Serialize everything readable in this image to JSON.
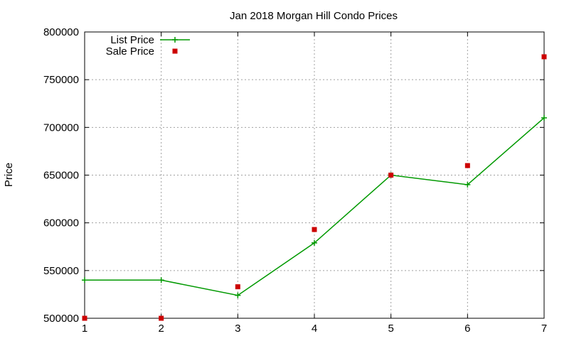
{
  "chart_data": {
    "type": "line",
    "title": "Jan 2018 Morgan Hill Condo Prices",
    "xlabel": "",
    "ylabel": "Price",
    "x": [
      1,
      2,
      3,
      4,
      5,
      6,
      7
    ],
    "xlim": [
      1,
      7
    ],
    "ylim": [
      500000,
      800000
    ],
    "xticks": [
      "1",
      "2",
      "3",
      "4",
      "5",
      "6",
      "7"
    ],
    "yticks": [
      "500000",
      "550000",
      "600000",
      "650000",
      "700000",
      "750000",
      "800000"
    ],
    "grid": true,
    "legend": "top-left",
    "series": [
      {
        "name": "List Price",
        "style": "line+cross",
        "color": "#009900",
        "values": [
          540000,
          540000,
          524000,
          579000,
          650000,
          640000,
          710000
        ]
      },
      {
        "name": "Sale Price",
        "style": "square-points",
        "color": "#cc0000",
        "values": [
          500000,
          500000,
          533000,
          593000,
          650000,
          660000,
          774000
        ]
      }
    ]
  }
}
